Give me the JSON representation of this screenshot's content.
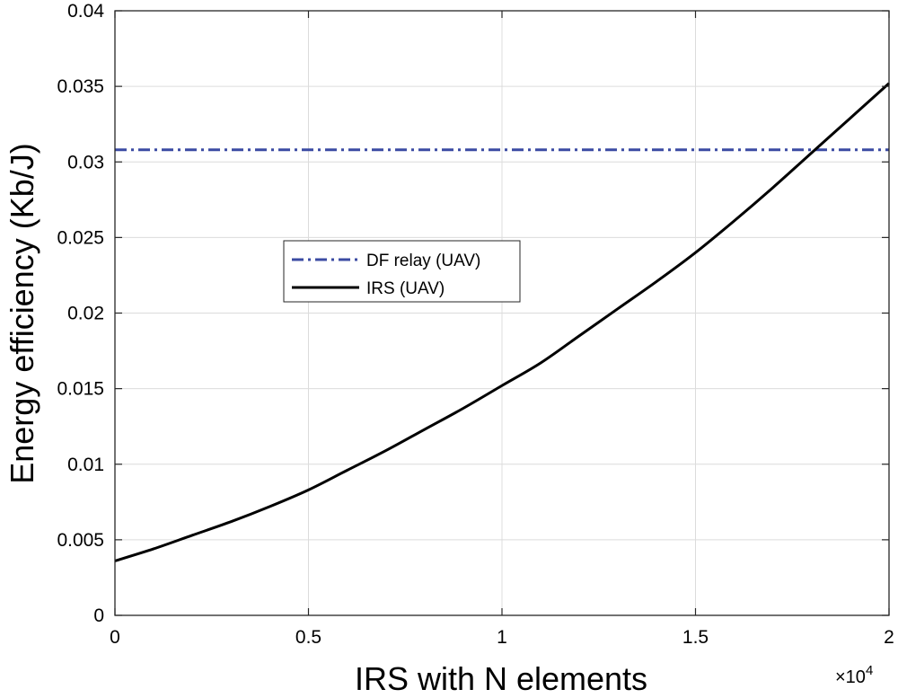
{
  "chart_data": {
    "type": "line",
    "title": "",
    "xlabel": "IRS with N elements",
    "ylabel": "Energy efficiency (Kb/J)",
    "x_scale_multiplier_label": "×10",
    "x_scale_exponent": "4",
    "xlim": [
      0,
      2
    ],
    "ylim": [
      0,
      0.04
    ],
    "xticks": [
      0,
      0.5,
      1,
      1.5,
      2
    ],
    "xtick_labels": [
      "0",
      "0.5",
      "1",
      "1.5",
      "2"
    ],
    "yticks": [
      0,
      0.005,
      0.01,
      0.015,
      0.02,
      0.025,
      0.03,
      0.035,
      0.04
    ],
    "ytick_labels": [
      "0",
      "0.005",
      "0.01",
      "0.015",
      "0.02",
      "0.025",
      "0.03",
      "0.035",
      "0.04"
    ],
    "grid": true,
    "legend_position": "center-left",
    "series": [
      {
        "name": "DF relay (UAV)",
        "color": "#3b4ba3",
        "style": "dashdot",
        "x": [
          0,
          2
        ],
        "y": [
          0.0308,
          0.0308
        ]
      },
      {
        "name": "IRS (UAV)",
        "color": "#000000",
        "style": "solid",
        "x": [
          0,
          0.1,
          0.2,
          0.3,
          0.4,
          0.5,
          0.6,
          0.7,
          0.8,
          0.9,
          1.0,
          1.1,
          1.2,
          1.3,
          1.4,
          1.5,
          1.6,
          1.7,
          1.8,
          1.9,
          2.0
        ],
        "y": [
          0.0036,
          0.0044,
          0.0053,
          0.0062,
          0.0072,
          0.0083,
          0.0096,
          0.0109,
          0.0123,
          0.0137,
          0.0152,
          0.0167,
          0.0185,
          0.0203,
          0.0221,
          0.024,
          0.0261,
          0.0283,
          0.0306,
          0.0329,
          0.0352
        ]
      }
    ]
  }
}
